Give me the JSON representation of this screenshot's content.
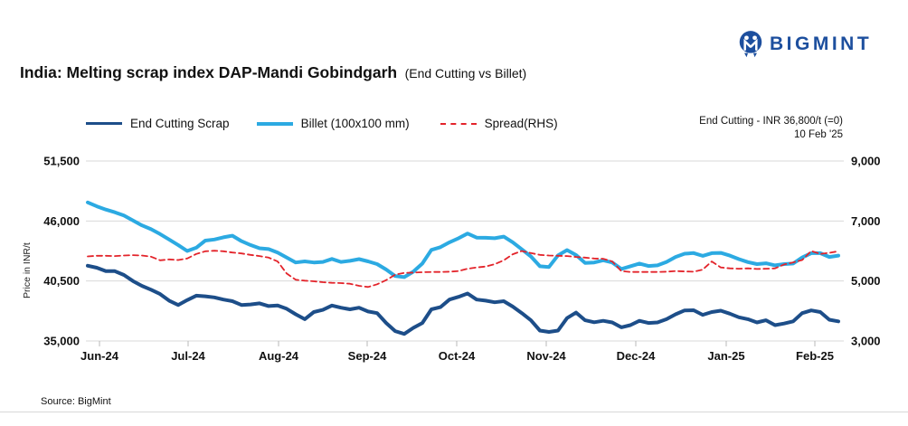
{
  "header": {
    "logo_text": "BIGMINT"
  },
  "title": {
    "main": "India: Melting scrap index DAP-Mandi Gobindgarh",
    "sub": "(End Cutting vs Billet)"
  },
  "annotation": {
    "line1": "End Cutting - INR 36,800/t  (=0)",
    "line2": "10 Feb '25"
  },
  "source": "Source: BigMint",
  "colors": {
    "end_cutting": "#1d4e89",
    "billet": "#2caae2",
    "spread": "#e3242b",
    "logo_blue": "#1d4f9e",
    "gridline": "#d9d9d9"
  },
  "chart_data": {
    "type": "line",
    "title": "India: Melting scrap index DAP-Mandi Gobindgarh (End Cutting vs Billet)",
    "ylabel": "Price in INR/t",
    "grid": true,
    "legend_position": "top",
    "x_tick_labels": [
      "Jun-24",
      "Jul-24",
      "Aug-24",
      "Sep-24",
      "Oct-24",
      "Nov-24",
      "Dec-24",
      "Jan-25",
      "Feb-25"
    ],
    "left_axis": {
      "labels": [
        "35,000",
        "40,500",
        "46,000",
        "51,500"
      ],
      "ticks": [
        35000,
        40500,
        46000,
        51500
      ],
      "range": [
        35000,
        51500
      ]
    },
    "right_axis": {
      "labels": [
        "3,000",
        "5,000",
        "7,000",
        "9,000"
      ],
      "ticks": [
        3000,
        5000,
        7000,
        9000
      ],
      "range": [
        3000,
        9000
      ]
    },
    "legend": [
      {
        "label": "End Cutting Scrap",
        "color": "#1d4e89",
        "dashed": false
      },
      {
        "label": "Billet (100x100 mm)",
        "color": "#2caae2",
        "dashed": false
      },
      {
        "label": "Spread(RHS)",
        "color": "#e3242b",
        "dashed": true
      }
    ],
    "series": [
      {
        "name": "End Cutting Scrap",
        "axis": "left",
        "color": "#1d4e89",
        "dashed": false,
        "values": [
          41900,
          41720,
          41400,
          41400,
          41050,
          40500,
          40050,
          39700,
          39300,
          38700,
          38300,
          38750,
          39150,
          39100,
          39000,
          38800,
          38650,
          38300,
          38350,
          38450,
          38200,
          38250,
          37950,
          37450,
          37000,
          37650,
          37850,
          38250,
          38050,
          37900,
          38050,
          37700,
          37550,
          36650,
          35900,
          35650,
          36200,
          36650,
          37900,
          38100,
          38800,
          39050,
          39350,
          38800,
          38700,
          38550,
          38650,
          38150,
          37550,
          36900,
          35950,
          35830,
          35950,
          37100,
          37600,
          36900,
          36720,
          36850,
          36700,
          36250,
          36450,
          36850,
          36650,
          36700,
          37000,
          37450,
          37800,
          37820,
          37400,
          37650,
          37780,
          37500,
          37170,
          37000,
          36700,
          36900,
          36450,
          36600,
          36800,
          37550,
          37800,
          37650,
          36950,
          36800
        ]
      },
      {
        "name": "Billet (100x100 mm)",
        "axis": "left",
        "color": "#2caae2",
        "dashed": false,
        "values": [
          47700,
          47350,
          47050,
          46800,
          46500,
          46050,
          45600,
          45250,
          44800,
          44300,
          43800,
          43250,
          43550,
          44200,
          44300,
          44500,
          44650,
          44150,
          43800,
          43500,
          43420,
          43100,
          42650,
          42200,
          42300,
          42200,
          42250,
          42520,
          42250,
          42350,
          42500,
          42300,
          42050,
          41550,
          40950,
          40850,
          41350,
          42100,
          43350,
          43600,
          44050,
          44420,
          44850,
          44480,
          44460,
          44420,
          44570,
          44050,
          43400,
          42750,
          41850,
          41780,
          42850,
          43330,
          42880,
          42150,
          42200,
          42400,
          42200,
          41600,
          41850,
          42100,
          41870,
          41930,
          42250,
          42700,
          43000,
          43060,
          42800,
          43050,
          43080,
          42830,
          42500,
          42230,
          42050,
          42120,
          41930,
          42050,
          42100,
          42650,
          43050,
          43050,
          42700,
          42830
        ]
      },
      {
        "name": "Spread(RHS)",
        "axis": "right",
        "color": "#e3242b",
        "dashed": true,
        "values": [
          5820,
          5840,
          5840,
          5830,
          5850,
          5860,
          5850,
          5810,
          5690,
          5720,
          5700,
          5750,
          5900,
          5990,
          6010,
          5990,
          5950,
          5920,
          5870,
          5830,
          5780,
          5650,
          5250,
          5040,
          5010,
          4990,
          4960,
          4940,
          4930,
          4910,
          4840,
          4800,
          4890,
          5030,
          5210,
          5270,
          5280,
          5290,
          5300,
          5300,
          5310,
          5330,
          5410,
          5450,
          5480,
          5560,
          5690,
          5890,
          6000,
          5930,
          5870,
          5850,
          5840,
          5830,
          5800,
          5780,
          5750,
          5740,
          5650,
          5330,
          5300,
          5300,
          5300,
          5300,
          5310,
          5330,
          5320,
          5310,
          5380,
          5650,
          5450,
          5420,
          5410,
          5420,
          5400,
          5410,
          5420,
          5550,
          5620,
          5700,
          6000,
          5900,
          5940,
          5990
        ]
      }
    ]
  }
}
